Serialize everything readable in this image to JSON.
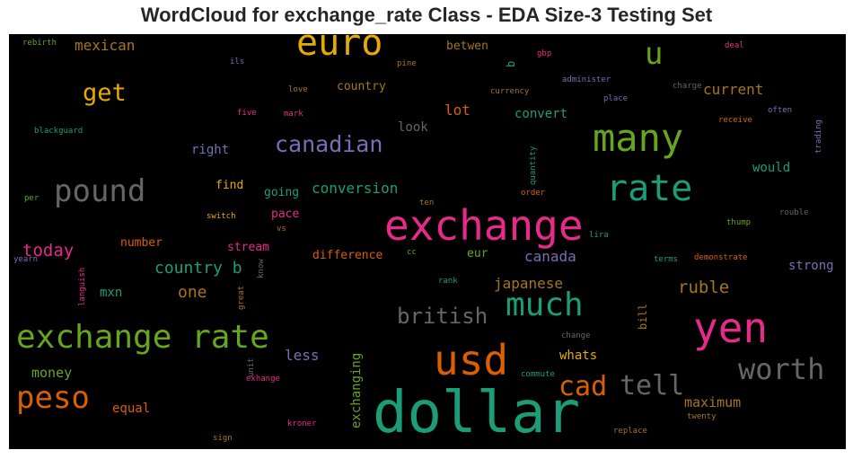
{
  "chart_data": {
    "type": "wordcloud",
    "title": "WordCloud for exchange_rate Class - EDA Size-3 Testing Set",
    "background": "#000000",
    "palette": [
      "#1b9e77",
      "#d95f02",
      "#7570b3",
      "#e7298a",
      "#66a61e",
      "#e6ab02",
      "#a6761d",
      "#666666"
    ],
    "words": [
      {
        "text": "dollar",
        "size": 64,
        "color": "#1b9e77"
      },
      {
        "text": "exchange",
        "size": 46,
        "color": "#e7298a"
      },
      {
        "text": "yen",
        "size": 46,
        "color": "#e7298a"
      },
      {
        "text": "usd",
        "size": 46,
        "color": "#d95f02"
      },
      {
        "text": "euro",
        "size": 40,
        "color": "#e6ab02"
      },
      {
        "text": "many",
        "size": 42,
        "color": "#66a61e"
      },
      {
        "text": "rate",
        "size": 40,
        "color": "#1b9e77"
      },
      {
        "text": "exchange rate",
        "size": 36,
        "color": "#66a61e"
      },
      {
        "text": "much",
        "size": 36,
        "color": "#1b9e77"
      },
      {
        "text": "pound",
        "size": 34,
        "color": "#666666"
      },
      {
        "text": "peso",
        "size": 34,
        "color": "#d95f02"
      },
      {
        "text": "u",
        "size": 34,
        "color": "#66a61e"
      },
      {
        "text": "worth",
        "size": 32,
        "color": "#666666"
      },
      {
        "text": "tell",
        "size": 30,
        "color": "#666666"
      },
      {
        "text": "cad",
        "size": 30,
        "color": "#d95f02"
      },
      {
        "text": "get",
        "size": 27,
        "color": "#e6ab02"
      },
      {
        "text": "canadian",
        "size": 25,
        "color": "#7570b3"
      },
      {
        "text": "british",
        "size": 24,
        "color": "#666666"
      },
      {
        "text": "today",
        "size": 19,
        "color": "#e7298a"
      },
      {
        "text": "ruble",
        "size": 19,
        "color": "#a6761d"
      },
      {
        "text": "country b",
        "size": 18,
        "color": "#1b9e77"
      },
      {
        "text": "one",
        "size": 18,
        "color": "#a6761d"
      },
      {
        "text": "current",
        "size": 16,
        "color": "#a6761d"
      },
      {
        "text": "canada",
        "size": 16,
        "color": "#7570b3"
      },
      {
        "text": "mexican",
        "size": 16,
        "color": "#a6761d"
      },
      {
        "text": "lot",
        "size": 16,
        "color": "#d95f02"
      },
      {
        "text": "conversion",
        "size": 16,
        "color": "#1b9e77"
      },
      {
        "text": "japanese",
        "size": 16,
        "color": "#a6761d"
      },
      {
        "text": "less",
        "size": 16,
        "color": "#7570b3"
      },
      {
        "text": "money",
        "size": 15,
        "color": "#66a61e"
      },
      {
        "text": "maximum",
        "size": 15,
        "color": "#a6761d"
      },
      {
        "text": "would",
        "size": 14,
        "color": "#1b9e77"
      },
      {
        "text": "strong",
        "size": 14,
        "color": "#7570b3"
      },
      {
        "text": "right",
        "size": 14,
        "color": "#7570b3"
      },
      {
        "text": "look",
        "size": 14,
        "color": "#666666"
      },
      {
        "text": "convert",
        "size": 14,
        "color": "#1b9e77"
      },
      {
        "text": "whats",
        "size": 14,
        "color": "#e6ab02"
      },
      {
        "text": "equal",
        "size": 14,
        "color": "#d95f02"
      },
      {
        "text": "mxn",
        "size": 14,
        "color": "#1b9e77"
      },
      {
        "text": "exchanging",
        "size": 14,
        "color": "#66a61e"
      },
      {
        "text": "find",
        "size": 13,
        "color": "#e6ab02"
      },
      {
        "text": "going",
        "size": 13,
        "color": "#1b9e77"
      },
      {
        "text": "pace",
        "size": 13,
        "color": "#e7298a"
      },
      {
        "text": "stream",
        "size": 13,
        "color": "#e7298a"
      },
      {
        "text": "number",
        "size": 13,
        "color": "#d95f02"
      },
      {
        "text": "difference",
        "size": 13,
        "color": "#d95f02"
      },
      {
        "text": "eur",
        "size": 13,
        "color": "#66a61e"
      },
      {
        "text": "country",
        "size": 13,
        "color": "#a6761d"
      },
      {
        "text": "betwen",
        "size": 13,
        "color": "#a6761d"
      },
      {
        "text": "bill",
        "size": 12,
        "color": "#a6761d"
      },
      {
        "text": "b",
        "size": 12,
        "color": "#1b9e77"
      },
      {
        "text": "gbp",
        "size": 9,
        "color": "#e7298a"
      },
      {
        "text": "pine",
        "size": 9,
        "color": "#a6761d"
      },
      {
        "text": "ils",
        "size": 9,
        "color": "#7570b3"
      },
      {
        "text": "rebirth",
        "size": 9,
        "color": "#66a61e"
      },
      {
        "text": "deal",
        "size": 9,
        "color": "#e7298a"
      },
      {
        "text": "love",
        "size": 9,
        "color": "#a6761d"
      },
      {
        "text": "currency",
        "size": 9,
        "color": "#a6761d"
      },
      {
        "text": "administer",
        "size": 9,
        "color": "#7570b3"
      },
      {
        "text": "charge",
        "size": 9,
        "color": "#666666"
      },
      {
        "text": "place",
        "size": 9,
        "color": "#7570b3"
      },
      {
        "text": "often",
        "size": 9,
        "color": "#7570b3"
      },
      {
        "text": "trading",
        "size": 9,
        "color": "#7570b3"
      },
      {
        "text": "five",
        "size": 9,
        "color": "#e7298a"
      },
      {
        "text": "mark",
        "size": 9,
        "color": "#e7298a"
      },
      {
        "text": "receive",
        "size": 9,
        "color": "#d95f02"
      },
      {
        "text": "blackguard",
        "size": 9,
        "color": "#1b9e77"
      },
      {
        "text": "quantity",
        "size": 9,
        "color": "#1b9e77"
      },
      {
        "text": "per",
        "size": 9,
        "color": "#66a61e"
      },
      {
        "text": "ten",
        "size": 9,
        "color": "#a6761d"
      },
      {
        "text": "order",
        "size": 9,
        "color": "#d95f02"
      },
      {
        "text": "switch",
        "size": 9,
        "color": "#e6ab02"
      },
      {
        "text": "vs",
        "size": 9,
        "color": "#a6761d"
      },
      {
        "text": "thump",
        "size": 9,
        "color": "#66a61e"
      },
      {
        "text": "rouble",
        "size": 9,
        "color": "#666666"
      },
      {
        "text": "lira",
        "size": 9,
        "color": "#1b9e77"
      },
      {
        "text": "yearn",
        "size": 9,
        "color": "#7570b3"
      },
      {
        "text": "languish",
        "size": 9,
        "color": "#e7298a"
      },
      {
        "text": "great",
        "size": 9,
        "color": "#a6761d"
      },
      {
        "text": "know",
        "size": 9,
        "color": "#666666"
      },
      {
        "text": "cc",
        "size": 9,
        "color": "#66a61e"
      },
      {
        "text": "terms",
        "size": 9,
        "color": "#1b9e77"
      },
      {
        "text": "demonstrate",
        "size": 9,
        "color": "#d95f02"
      },
      {
        "text": "rank",
        "size": 9,
        "color": "#1b9e77"
      },
      {
        "text": "change",
        "size": 9,
        "color": "#666666"
      },
      {
        "text": "unit",
        "size": 9,
        "color": "#666666"
      },
      {
        "text": "exhange",
        "size": 9,
        "color": "#e7298a"
      },
      {
        "text": "commute",
        "size": 9,
        "color": "#1b9e77"
      },
      {
        "text": "twenty",
        "size": 9,
        "color": "#a6761d"
      },
      {
        "text": "kroner",
        "size": 9,
        "color": "#e7298a"
      },
      {
        "text": "sign",
        "size": 9,
        "color": "#a6761d"
      },
      {
        "text": "replace",
        "size": 9,
        "color": "#a6761d"
      }
    ]
  }
}
